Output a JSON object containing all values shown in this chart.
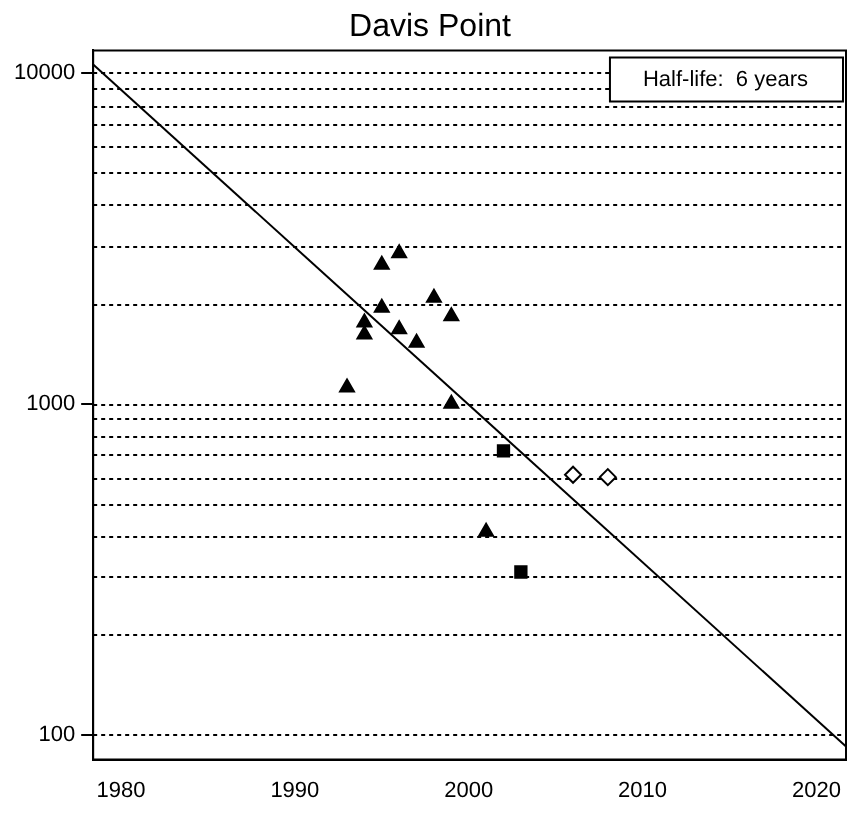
{
  "chart_data": {
    "type": "scatter",
    "title": "Davis Point",
    "log": "y",
    "grid": "y",
    "legend": false,
    "xlim": [
      1978.4,
      2021.7
    ],
    "xticks": [
      1980,
      1990,
      2000,
      2010,
      2020
    ],
    "ylim": [
      84,
      11700
    ],
    "yticks": [
      100,
      {
        "value": 200,
        "label": null
      },
      {
        "value": 300,
        "label": null
      },
      {
        "value": 400,
        "label": null
      },
      {
        "value": 500,
        "label": null
      },
      {
        "value": 600,
        "label": null
      },
      {
        "value": 700,
        "label": null
      },
      {
        "value": 800,
        "label": null
      },
      {
        "value": 900,
        "label": null
      },
      1000,
      {
        "value": 2000,
        "label": null
      },
      {
        "value": 3000,
        "label": null
      },
      {
        "value": 4000,
        "label": null
      },
      {
        "value": 5000,
        "label": null
      },
      {
        "value": 6000,
        "label": null
      },
      {
        "value": 7000,
        "label": null
      },
      {
        "value": 8000,
        "label": null
      },
      {
        "value": 9000,
        "label": null
      },
      10000
    ],
    "annotations": [
      "Half-life:  6 years"
    ],
    "series": [
      {
        "marker": "triangle",
        "color": "#000000",
        "x": [
          1996,
          1995,
          1998,
          1995,
          1999,
          1994,
          1994,
          1996,
          1997,
          1993,
          1999,
          2001
        ],
        "values": [
          2850,
          2630,
          2090,
          1950,
          1840,
          1760,
          1620,
          1680,
          1530,
          1120,
          1000,
          410
        ]
      },
      {
        "marker": "square",
        "color": "#000000",
        "x": [
          2002,
          2003
        ],
        "values": [
          720,
          310
        ]
      },
      {
        "marker": "diamond",
        "color": "#000000",
        "x": [
          2006,
          2008
        ],
        "values": [
          610,
          600
        ]
      },
      {
        "type": "line",
        "color": "#000000",
        "x": [
          1978.4,
          2021.7
        ],
        "values": [
          10600,
          92
        ]
      }
    ]
  }
}
